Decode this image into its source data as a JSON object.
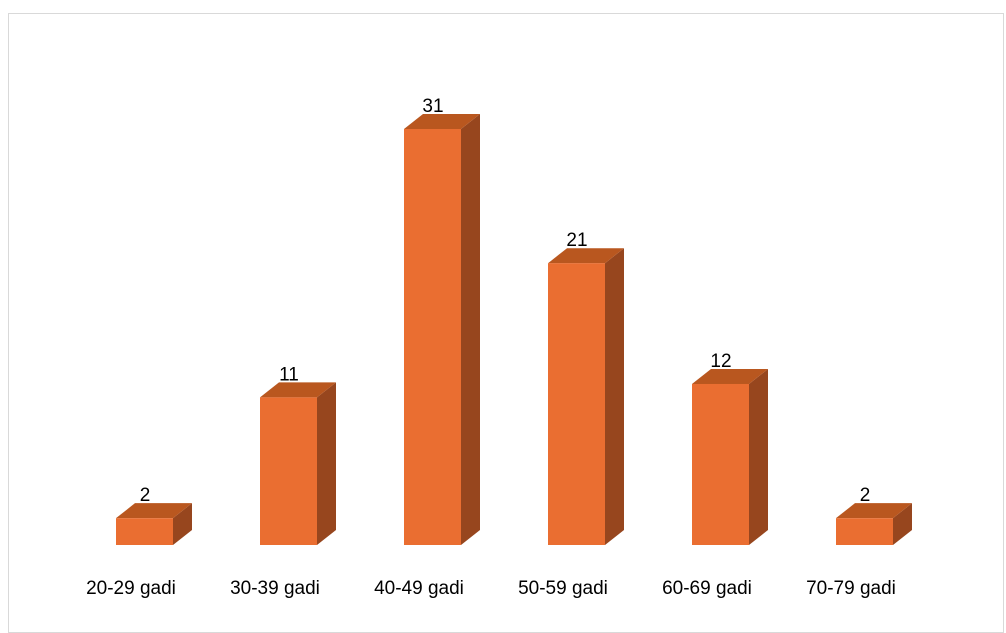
{
  "chart_data": {
    "type": "bar",
    "categories": [
      "20-29 gadi",
      "30-39 gadi",
      "40-49 gadi",
      "50-59 gadi",
      "60-69 gadi",
      "70-79 gadi"
    ],
    "values": [
      2,
      11,
      31,
      21,
      12,
      2
    ],
    "title": "",
    "xlabel": "",
    "ylabel": "",
    "ylim": [
      0,
      31
    ],
    "grid": false,
    "legend": "none",
    "colors": {
      "front": "#ea6e31",
      "side": "#97461e",
      "top": "#b9571f"
    }
  }
}
